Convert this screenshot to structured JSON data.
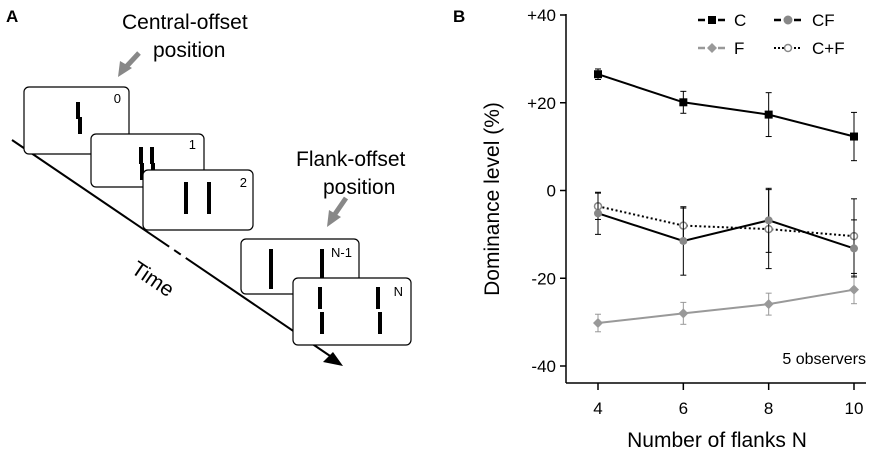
{
  "panel_a": {
    "letter": "A",
    "central_label_line1": "Central-offset",
    "central_label_line2": "position",
    "flank_label_line1": "Flank-offset",
    "flank_label_line2": "position",
    "time_label": "Time",
    "frames": [
      "0",
      "1",
      "2",
      "N-1",
      "N"
    ]
  },
  "panel_b": {
    "letter": "B",
    "note": "5 observers"
  },
  "chart_data": {
    "type": "line",
    "title": "",
    "xlabel": "Number of flanks N",
    "ylabel": "Dominance level (%)",
    "x": [
      4,
      6,
      8,
      10
    ],
    "xticks": [
      "4",
      "6",
      "8",
      "10"
    ],
    "yticks": [
      "+40",
      "+20",
      "0",
      "-20",
      "-40"
    ],
    "ytick_values": [
      40,
      20,
      0,
      -20,
      -40
    ],
    "ylim": [
      -40,
      40
    ],
    "xlim": [
      4,
      10
    ],
    "legend_placement": "top-right",
    "grid": false,
    "series": [
      {
        "name": "C",
        "values": [
          26.5,
          20.1,
          17.3,
          12.3
        ],
        "err": [
          1.2,
          2.5,
          5.0,
          5.5
        ],
        "color": "#000000",
        "marker": "square",
        "dash": "solid"
      },
      {
        "name": "CF",
        "values": [
          -5.2,
          -11.5,
          -6.8,
          -13.2
        ],
        "err": [
          4.8,
          7.8,
          7.3,
          6.5
        ],
        "color": "#000000",
        "marker": "circle-gray",
        "dash": "solid"
      },
      {
        "name": "F",
        "values": [
          -30.2,
          -28.0,
          -25.9,
          -22.6
        ],
        "err": [
          2.0,
          2.5,
          2.5,
          3.2
        ],
        "color": "#999999",
        "marker": "diamond",
        "dash": "solid"
      },
      {
        "name": "C+F",
        "values": [
          -3.6,
          -8.0,
          -8.8,
          -10.4
        ],
        "err": [
          3.0,
          4.0,
          9.0,
          8.5
        ],
        "color": "#000000",
        "marker": "open-circle",
        "dash": "dotted"
      }
    ]
  }
}
